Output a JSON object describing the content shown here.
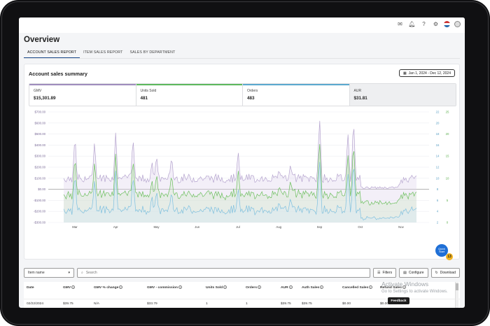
{
  "page": {
    "title": "Overview",
    "top_icons": [
      "mail-icon",
      "bell-icon",
      "help-icon",
      "settings-icon",
      "us-flag-icon",
      "avatar-icon"
    ]
  },
  "tabs": [
    {
      "label": "ACCOUNT SALES REPORT",
      "active": true
    },
    {
      "label": "ITEM SALES REPORT",
      "active": false
    },
    {
      "label": "SALES BY DEPARTMENT",
      "active": false
    }
  ],
  "summary": {
    "title": "Account sales summary",
    "date_range": "Jan 1, 2024 - Dec 12, 2024",
    "metrics": [
      {
        "label": "GMV",
        "value": "$15,301.89",
        "color": "#9f8dbd"
      },
      {
        "label": "Units Sold",
        "value": "481",
        "color": "#5cb85c"
      },
      {
        "label": "Orders",
        "value": "483",
        "color": "#5aa9cf"
      },
      {
        "label": "AUR",
        "value": "$31.81",
        "color": "#cfd0d3"
      }
    ]
  },
  "chart_data": {
    "type": "area",
    "title": "",
    "x_tick_labels": [
      "Mar",
      "Apr",
      "May",
      "Jun",
      "Jul",
      "Aug",
      "Sep",
      "Oct",
      "Nov"
    ],
    "left_axis_labels": [
      "$700.00",
      "$600.00",
      "$500.00",
      "$400.00",
      "$300.00",
      "$200.00",
      "$100.00",
      "$0.00",
      "-$100.00",
      "-$200.00",
      "-$300.00"
    ],
    "right_axis_1_labels": [
      "22",
      "20",
      "18",
      "16",
      "14",
      "12",
      "10",
      "8",
      "6",
      "4",
      "2"
    ],
    "right_axis_2_labels": [
      "25",
      "20",
      "15",
      "10",
      "5",
      "0"
    ],
    "series": [
      {
        "name": "GMV",
        "color": "#b6a5cf",
        "fill": "#ddd2ea"
      },
      {
        "name": "Units Sold",
        "color": "#6cbf5e",
        "fill": "#cfe9c5"
      },
      {
        "name": "Orders",
        "color": "#7fc0df",
        "fill": "#d4ebf5"
      }
    ],
    "peaks": [
      {
        "month": "Mar",
        "gmv": 480,
        "units": 14
      },
      {
        "month": "Apr",
        "gmv": 500,
        "units": 15
      },
      {
        "month": "May",
        "gmv": 320,
        "units": 10
      },
      {
        "month": "Jul",
        "gmv": 340,
        "units": 12
      },
      {
        "month": "Aug",
        "gmv": 180,
        "units": 7
      },
      {
        "month": "Sep",
        "gmv": 650,
        "units": 21
      },
      {
        "month": "Nov",
        "gmv": 60,
        "units": 4
      }
    ]
  },
  "toolbar": {
    "select_value": "Item name",
    "search_placeholder": "Search",
    "filters_label": "Filters",
    "configure_label": "Configure",
    "download_label": "Download"
  },
  "table": {
    "columns": [
      "Date",
      "GMV",
      "GMV % change",
      "GMV - commission",
      "Units Sold",
      "Orders",
      "AUR",
      "Auth Sales",
      "Cancelled Sales",
      "Refund Sales"
    ],
    "rows": [
      [
        "02/22/2024",
        "$39.75",
        "N/A",
        "$33.79",
        "1",
        "1",
        "$39.75",
        "$39.75",
        "$0.00",
        "$0.00"
      ]
    ]
  },
  "overlay": {
    "activate_title": "Activate Windows",
    "activate_sub": "Go to Settings to activate Windows.",
    "feedback_label": "Feedback",
    "quick_start_label": "Quick Start",
    "quick_start_count": "13"
  }
}
